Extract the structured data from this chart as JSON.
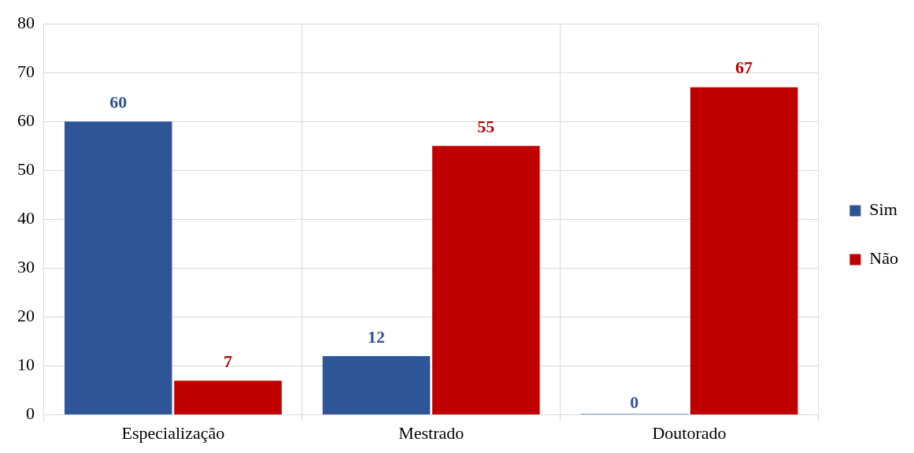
{
  "chart_data": {
    "type": "bar",
    "categories": [
      "Especialização",
      "Mestrado",
      "Doutorado"
    ],
    "series": [
      {
        "name": "Sim",
        "color": "#2e5597",
        "values": [
          60,
          12,
          0
        ]
      },
      {
        "name": "Não",
        "color": "#c00000",
        "values": [
          7,
          55,
          67
        ]
      }
    ],
    "ylim": [
      0,
      80
    ],
    "yticks": [
      0,
      10,
      20,
      30,
      40,
      50,
      60,
      70,
      80
    ],
    "grid": true,
    "legend": "right",
    "data_labels": true
  }
}
